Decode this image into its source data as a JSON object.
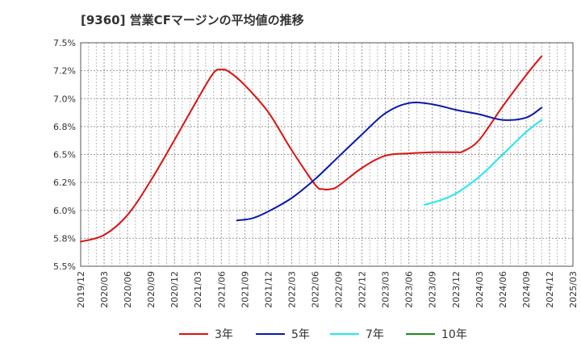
{
  "chart_data": {
    "type": "line",
    "title": "[9360]  営業CFマージンの平均値の推移",
    "xlabel": "",
    "ylabel": "",
    "x_ticks": [
      "2019/12",
      "2020/03",
      "2020/06",
      "2020/09",
      "2020/12",
      "2021/03",
      "2021/06",
      "2021/09",
      "2021/12",
      "2022/03",
      "2022/06",
      "2022/09",
      "2022/12",
      "2023/03",
      "2023/06",
      "2023/09",
      "2023/12",
      "2024/03",
      "2024/06",
      "2024/09",
      "2024/12",
      "2025/03"
    ],
    "y_ticks": [
      "5.5%",
      "5.8%",
      "6.0%",
      "6.2%",
      "6.5%",
      "6.8%",
      "7.0%",
      "7.2%",
      "7.5%"
    ],
    "ylim": [
      5.5,
      7.5
    ],
    "grid": true,
    "legend_position": "bottom",
    "series": [
      {
        "name": "3年",
        "color": "#dd1111",
        "points": [
          [
            "2019/12",
            5.72
          ],
          [
            "2020/03",
            5.78
          ],
          [
            "2020/06",
            5.96
          ],
          [
            "2020/09",
            6.27
          ],
          [
            "2020/12",
            6.63
          ],
          [
            "2021/03",
            7.0
          ],
          [
            "2021/05",
            7.23
          ],
          [
            "2021/06",
            7.26
          ],
          [
            "2021/07",
            7.24
          ],
          [
            "2021/09",
            7.12
          ],
          [
            "2021/12",
            6.88
          ],
          [
            "2022/03",
            6.54
          ],
          [
            "2022/06",
            6.23
          ],
          [
            "2022/07",
            6.19
          ],
          [
            "2022/08",
            6.19
          ],
          [
            "2022/09",
            6.22
          ],
          [
            "2022/12",
            6.38
          ],
          [
            "2023/03",
            6.49
          ],
          [
            "2023/06",
            6.51
          ],
          [
            "2023/09",
            6.52
          ],
          [
            "2023/12",
            6.52
          ],
          [
            "2024/01",
            6.53
          ],
          [
            "2024/03",
            6.63
          ],
          [
            "2024/06",
            6.93
          ],
          [
            "2024/09",
            7.21
          ],
          [
            "2024/11",
            7.38
          ]
        ]
      },
      {
        "name": "5年",
        "color": "#0a18b0",
        "points": [
          [
            "2021/08",
            5.91
          ],
          [
            "2021/10",
            5.93
          ],
          [
            "2021/12",
            5.99
          ],
          [
            "2022/03",
            6.11
          ],
          [
            "2022/06",
            6.28
          ],
          [
            "2022/09",
            6.48
          ],
          [
            "2022/12",
            6.68
          ],
          [
            "2023/03",
            6.87
          ],
          [
            "2023/06",
            6.96
          ],
          [
            "2023/09",
            6.95
          ],
          [
            "2023/12",
            6.9
          ],
          [
            "2024/03",
            6.86
          ],
          [
            "2024/06",
            6.81
          ],
          [
            "2024/09",
            6.83
          ],
          [
            "2024/11",
            6.92
          ]
        ]
      },
      {
        "name": "7年",
        "color": "#22e8f0",
        "points": [
          [
            "2023/08",
            6.05
          ],
          [
            "2023/10",
            6.09
          ],
          [
            "2023/12",
            6.15
          ],
          [
            "2024/03",
            6.3
          ],
          [
            "2024/06",
            6.5
          ],
          [
            "2024/09",
            6.7
          ],
          [
            "2024/11",
            6.81
          ]
        ]
      },
      {
        "name": "10年",
        "color": "#1a8a1a",
        "points": []
      }
    ]
  }
}
